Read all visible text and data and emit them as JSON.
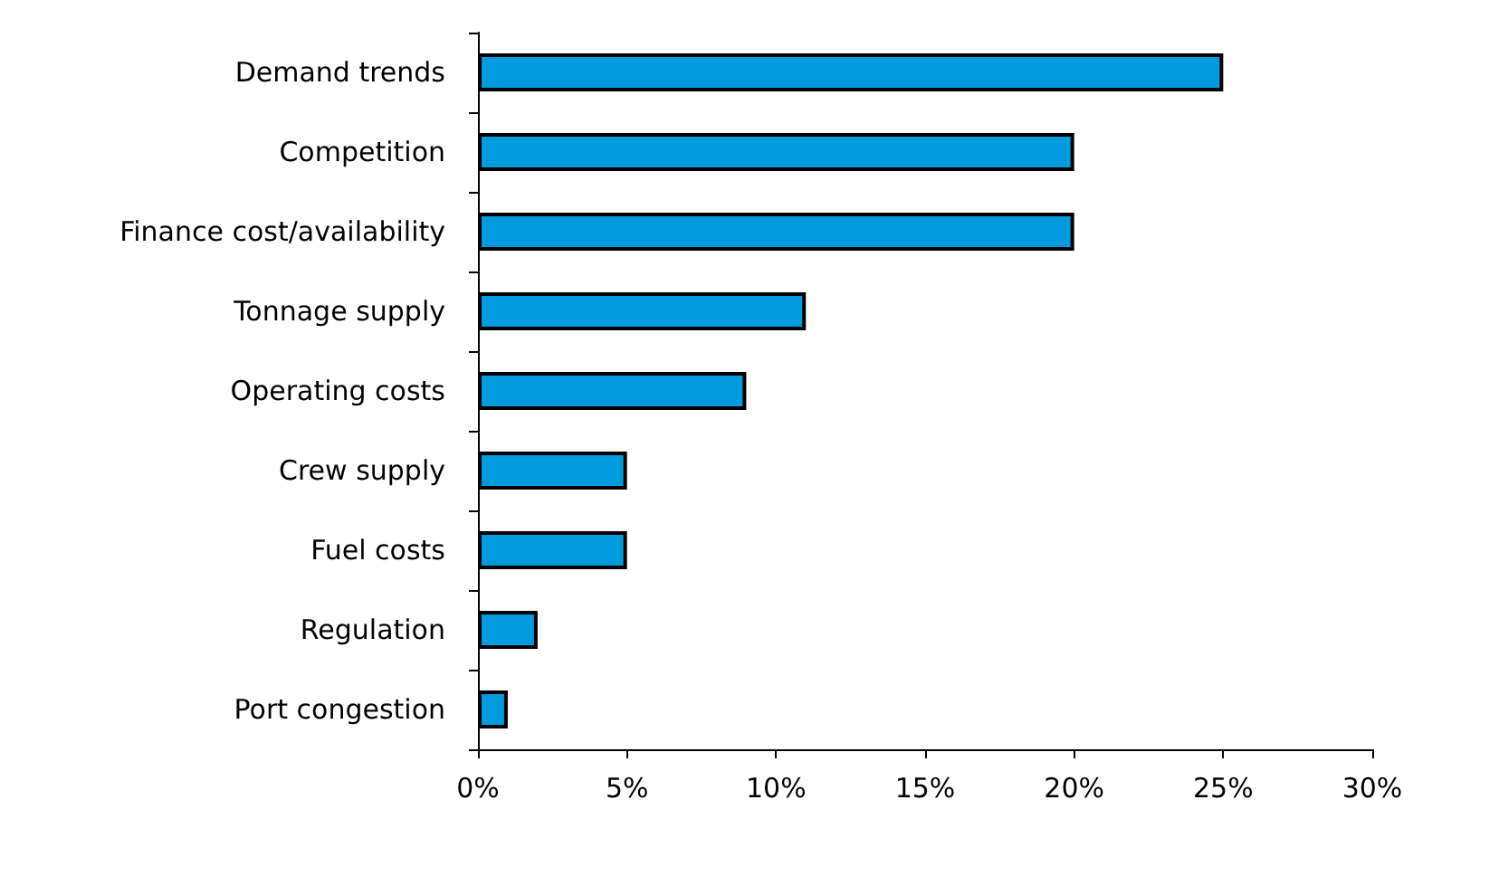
{
  "chart_data": {
    "type": "bar",
    "orientation": "horizontal",
    "categories": [
      "Demand trends",
      "Competition",
      "Finance cost/availability",
      "Tonnage supply",
      "Operating costs",
      "Crew supply",
      "Fuel costs",
      "Regulation",
      "Port congestion"
    ],
    "values": [
      25,
      20,
      20,
      11,
      9,
      5,
      5,
      2,
      1
    ],
    "color": "#009ade",
    "xlim": [
      0,
      30
    ],
    "xticks": [
      {
        "value": 0,
        "label": "0%"
      },
      {
        "value": 5,
        "label": "5%"
      },
      {
        "value": 10,
        "label": "10%"
      },
      {
        "value": 15,
        "label": "15%"
      },
      {
        "value": 20,
        "label": "20%"
      },
      {
        "value": 25,
        "label": "25%"
      },
      {
        "value": 30,
        "label": "30%"
      }
    ],
    "grid": false
  }
}
